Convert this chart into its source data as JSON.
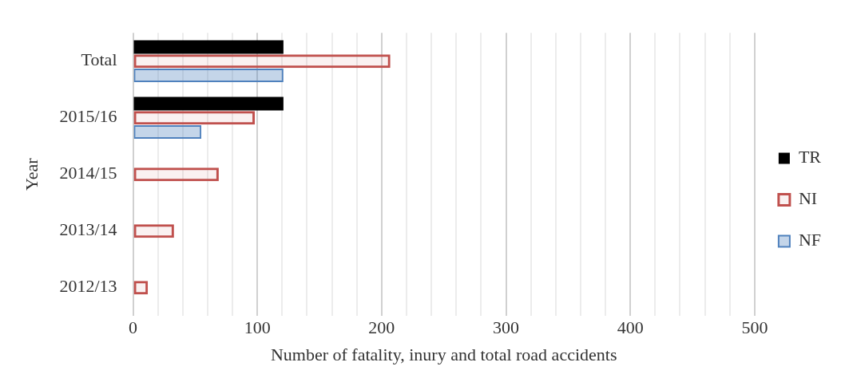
{
  "chart_data": {
    "type": "bar",
    "orientation": "horizontal",
    "xlabel": "Number of fatality, inury and total road accidents",
    "ylabel": "Year",
    "categories": [
      "Total",
      "2015/16",
      "2014/15",
      "2013/14",
      "2012/13"
    ],
    "series": [
      {
        "name": "TR",
        "color": "#000000",
        "values": [
          121,
          121,
          null,
          null,
          null
        ]
      },
      {
        "name": "NI",
        "color": "#c0504d",
        "values": [
          207,
          98,
          69,
          33,
          12
        ]
      },
      {
        "name": "NF",
        "color": "#4f81bd",
        "values": [
          121,
          55,
          null,
          null,
          null
        ]
      }
    ],
    "xlim": [
      0,
      500
    ],
    "xticks": [
      0,
      {
        "value": 20,
        "label": null
      },
      {
        "value": 40,
        "label": null
      },
      {
        "value": 60,
        "label": null
      },
      {
        "value": 80,
        "label": null
      },
      100,
      {
        "value": 120,
        "label": null
      },
      {
        "value": 140,
        "label": null
      },
      {
        "value": 160,
        "label": null
      },
      {
        "value": 180,
        "label": null
      },
      200,
      {
        "value": 220,
        "label": null
      },
      {
        "value": 240,
        "label": null
      },
      {
        "value": 260,
        "label": null
      },
      {
        "value": 280,
        "label": null
      },
      300,
      {
        "value": 320,
        "label": null
      },
      {
        "value": 340,
        "label": null
      },
      {
        "value": 360,
        "label": null
      },
      {
        "value": 380,
        "label": null
      },
      400,
      {
        "value": 420,
        "label": null
      },
      {
        "value": 440,
        "label": null
      },
      {
        "value": 460,
        "label": null
      },
      {
        "value": 480,
        "label": null
      },
      500
    ],
    "grid": "x",
    "legend": "right"
  }
}
